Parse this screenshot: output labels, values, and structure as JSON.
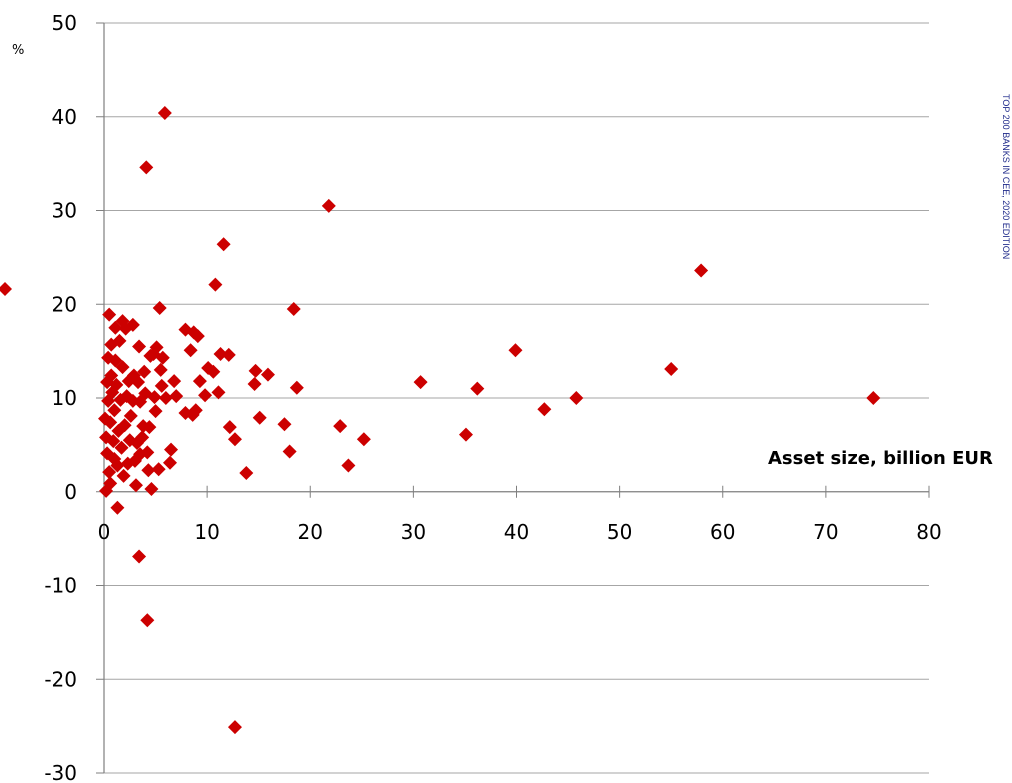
{
  "chart_data": {
    "type": "scatter",
    "title": "",
    "xlabel": "Asset size, billion EUR",
    "ylabel": "%",
    "xlim": [
      0,
      80
    ],
    "ylim": [
      -30,
      50
    ],
    "xticks": [
      "0",
      "10",
      "20",
      "30",
      "40",
      "50",
      "60",
      "70",
      "80"
    ],
    "yticks": [
      "50",
      "40",
      "30",
      "20",
      "10",
      "0",
      "-10",
      "-20",
      "-30"
    ],
    "grid": "horizontal",
    "marker": "diamond",
    "marker_color": "#cc0000",
    "side_note": "TOP 200 BANKS IN CEE, 2020 EDITION",
    "points": [
      [
        74.6,
        10.0
      ],
      [
        57.9,
        23.6
      ],
      [
        55.0,
        13.1
      ],
      [
        45.8,
        10.0
      ],
      [
        42.7,
        8.8
      ],
      [
        39.9,
        15.1
      ],
      [
        36.2,
        11.0
      ],
      [
        35.1,
        6.1
      ],
      [
        30.7,
        11.7
      ],
      [
        25.2,
        5.6
      ],
      [
        23.7,
        2.8
      ],
      [
        22.9,
        7.0
      ],
      [
        21.8,
        30.5
      ],
      [
        18.7,
        11.1
      ],
      [
        18.4,
        19.5
      ],
      [
        18.0,
        4.3
      ],
      [
        17.5,
        7.2
      ],
      [
        15.9,
        12.5
      ],
      [
        15.1,
        7.9
      ],
      [
        14.7,
        12.9
      ],
      [
        14.6,
        11.5
      ],
      [
        13.8,
        2.0
      ],
      [
        12.7,
        -25.1
      ],
      [
        12.7,
        5.6
      ],
      [
        12.2,
        6.9
      ],
      [
        12.1,
        14.6
      ],
      [
        11.6,
        26.4
      ],
      [
        11.3,
        14.7
      ],
      [
        11.1,
        10.6
      ],
      [
        10.8,
        22.1
      ],
      [
        10.6,
        12.8
      ],
      [
        10.1,
        13.2
      ],
      [
        9.8,
        10.3
      ],
      [
        9.3,
        11.8
      ],
      [
        9.1,
        16.6
      ],
      [
        8.9,
        8.7
      ],
      [
        8.7,
        17.0
      ],
      [
        8.6,
        8.2
      ],
      [
        8.4,
        15.1
      ],
      [
        7.9,
        17.3
      ],
      [
        7.9,
        8.4
      ],
      [
        7.0,
        10.2
      ],
      [
        6.8,
        11.8
      ],
      [
        6.5,
        4.5
      ],
      [
        6.4,
        3.1
      ],
      [
        6.0,
        10.0
      ],
      [
        5.9,
        40.4
      ],
      [
        5.7,
        14.3
      ],
      [
        5.6,
        11.3
      ],
      [
        5.5,
        13.0
      ],
      [
        5.4,
        19.6
      ],
      [
        5.3,
        2.4
      ],
      [
        5.1,
        15.4
      ],
      [
        5.0,
        8.6
      ],
      [
        4.9,
        10.1
      ],
      [
        4.8,
        14.7
      ],
      [
        4.6,
        0.3
      ],
      [
        4.5,
        14.5
      ],
      [
        4.4,
        6.9
      ],
      [
        4.3,
        2.3
      ],
      [
        4.2,
        4.2
      ],
      [
        4.2,
        -13.7
      ],
      [
        4.1,
        34.6
      ],
      [
        4.0,
        10.5
      ],
      [
        3.9,
        12.8
      ],
      [
        3.8,
        7.0
      ],
      [
        3.7,
        5.8
      ],
      [
        3.5,
        9.6
      ],
      [
        3.5,
        4.0
      ],
      [
        3.4,
        -6.9
      ],
      [
        3.4,
        15.5
      ],
      [
        3.3,
        11.7
      ],
      [
        3.2,
        5.2
      ],
      [
        3.1,
        0.7
      ],
      [
        3.0,
        3.3
      ],
      [
        2.9,
        12.4
      ],
      [
        2.8,
        9.7
      ],
      [
        2.8,
        17.8
      ],
      [
        2.6,
        8.1
      ],
      [
        2.5,
        5.5
      ],
      [
        2.4,
        11.8
      ],
      [
        2.3,
        3.0
      ],
      [
        2.2,
        10.2
      ],
      [
        2.1,
        17.4
      ],
      [
        2.0,
        7.1
      ],
      [
        1.9,
        1.7
      ],
      [
        1.8,
        13.3
      ],
      [
        1.8,
        18.2
      ],
      [
        1.7,
        4.7
      ],
      [
        1.6,
        9.8
      ],
      [
        1.5,
        16.1
      ],
      [
        1.4,
        6.5
      ],
      [
        1.3,
        2.8
      ],
      [
        1.3,
        -1.7
      ],
      [
        1.2,
        11.4
      ],
      [
        1.1,
        17.5
      ],
      [
        1.1,
        14.0
      ],
      [
        1.0,
        8.7
      ],
      [
        1.0,
        3.5
      ],
      [
        0.9,
        5.4
      ],
      [
        0.8,
        10.6
      ],
      [
        0.7,
        12.4
      ],
      [
        0.7,
        15.7
      ],
      [
        0.6,
        0.9
      ],
      [
        0.6,
        7.4
      ],
      [
        0.5,
        18.9
      ],
      [
        0.5,
        2.1
      ],
      [
        0.4,
        9.7
      ],
      [
        0.4,
        14.3
      ],
      [
        0.3,
        4.1
      ],
      [
        0.3,
        11.7
      ],
      [
        0.2,
        5.8
      ],
      [
        0.2,
        0.1
      ],
      [
        0.1,
        7.8
      ]
    ]
  }
}
